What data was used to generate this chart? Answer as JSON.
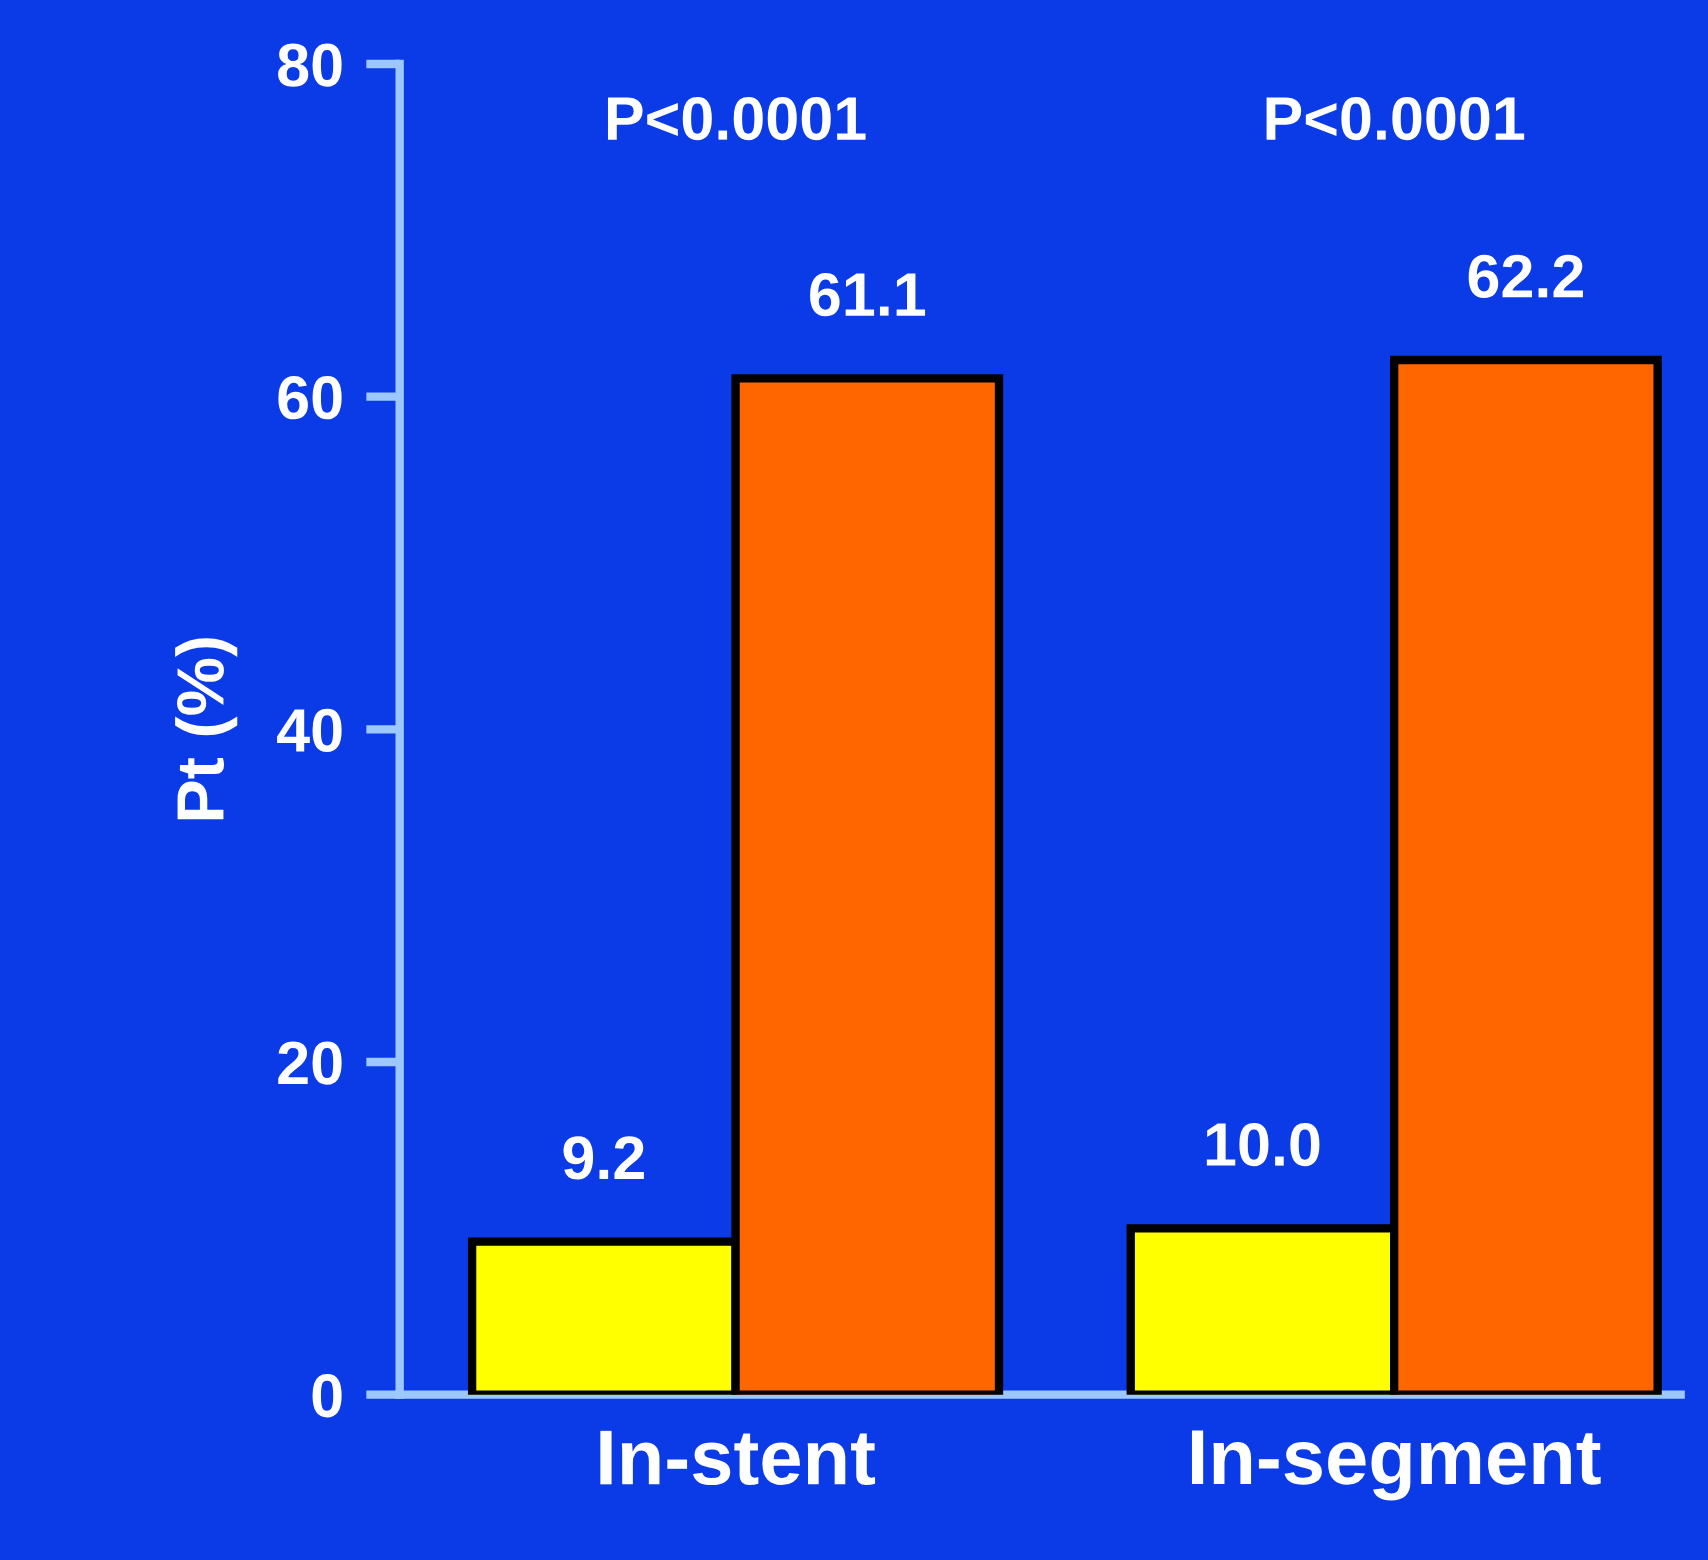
{
  "chart_data": {
    "type": "bar",
    "ylabel": "Pt (%)",
    "categories": [
      "In-stent",
      "In-segment"
    ],
    "series": [
      {
        "color": "#ffff00",
        "values": [
          9.2,
          10.0
        ],
        "value_labels": [
          "9.2",
          "10.0"
        ]
      },
      {
        "color": "#ff6600",
        "values": [
          61.1,
          62.2
        ],
        "value_labels": [
          "61.1",
          "62.2"
        ]
      }
    ],
    "annotations": [
      "P<0.0001",
      "P<0.0001"
    ],
    "ylim": [
      0,
      80
    ],
    "yticks": [
      0,
      20,
      40,
      60,
      80
    ],
    "grid": false
  }
}
